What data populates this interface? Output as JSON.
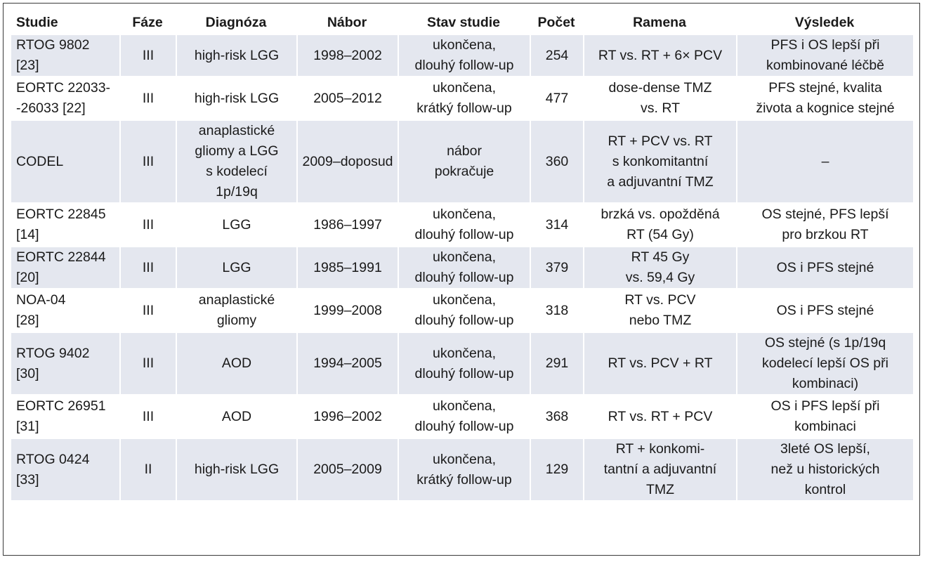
{
  "headers": [
    "Studie",
    "Fáze",
    "Diagnóza",
    "Nábor",
    "Stav studie",
    "Počet",
    "Ramena",
    "Výsledek"
  ],
  "rows": [
    {
      "studie": [
        "RTOG 9802",
        "[23]"
      ],
      "faze": "III",
      "diagnoza": [
        "high-risk LGG"
      ],
      "nabor": "1998–2002",
      "stav": [
        "ukončena,",
        "dlouhý follow-up"
      ],
      "pocet": "254",
      "ramena": [
        "RT vs. RT + 6× PCV"
      ],
      "vysledek": [
        "PFS i OS lepší při",
        "kombinované léčbě"
      ]
    },
    {
      "studie": [
        "EORTC 22033-",
        "-26033 [22]"
      ],
      "faze": "III",
      "diagnoza": [
        "high-risk LGG"
      ],
      "nabor": "2005–2012",
      "stav": [
        "ukončena,",
        "krátký follow-up"
      ],
      "pocet": "477",
      "ramena": [
        "dose-dense TMZ",
        "vs. RT"
      ],
      "vysledek": [
        "PFS stejné, kvalita",
        "života a kognice stejné"
      ]
    },
    {
      "studie": [
        "CODEL"
      ],
      "faze": "III",
      "diagnoza": [
        "anaplastické",
        "gliomy a LGG",
        "s kodelecí",
        "1p/19q"
      ],
      "nabor": "2009–doposud",
      "stav": [
        "nábor",
        "pokračuje"
      ],
      "pocet": "360",
      "ramena": [
        "RT + PCV vs. RT",
        "s konkomitantní",
        "a adjuvantní TMZ"
      ],
      "vysledek": [
        "–"
      ]
    },
    {
      "studie": [
        "EORTC 22845",
        "[14]"
      ],
      "faze": "III",
      "diagnoza": [
        "LGG"
      ],
      "nabor": "1986–1997",
      "stav": [
        "ukončena,",
        "dlouhý follow-up"
      ],
      "pocet": "314",
      "ramena": [
        "brzká vs. opožděná",
        "RT (54 Gy)"
      ],
      "vysledek": [
        "OS stejné, PFS lepší",
        "pro brzkou RT"
      ]
    },
    {
      "studie": [
        "EORTC 22844",
        "[20]"
      ],
      "faze": "III",
      "diagnoza": [
        "LGG"
      ],
      "nabor": "1985–1991",
      "stav": [
        "ukončena,",
        "dlouhý follow-up"
      ],
      "pocet": "379",
      "ramena": [
        "RT 45 Gy",
        "vs. 59,4 Gy"
      ],
      "vysledek": [
        "OS i PFS stejné"
      ]
    },
    {
      "studie": [
        "NOA-04",
        "[28]"
      ],
      "faze": "III",
      "diagnoza": [
        "anaplastické",
        "gliomy"
      ],
      "nabor": "1999–2008",
      "stav": [
        "ukončena,",
        "dlouhý follow-up"
      ],
      "pocet": "318",
      "ramena": [
        "RT vs. PCV",
        "nebo TMZ"
      ],
      "vysledek": [
        "OS i PFS stejné"
      ]
    },
    {
      "studie": [
        "RTOG 9402",
        "[30]"
      ],
      "faze": "III",
      "diagnoza": [
        "AOD"
      ],
      "nabor": "1994–2005",
      "stav": [
        "ukončena,",
        "dlouhý follow-up"
      ],
      "pocet": "291",
      "ramena": [
        "RT vs. PCV + RT"
      ],
      "vysledek": [
        "OS stejné (s 1p/19q",
        "kodelecí lepší OS při",
        "kombinaci)"
      ]
    },
    {
      "studie": [
        "EORTC 26951",
        "[31]"
      ],
      "faze": "III",
      "diagnoza": [
        "AOD"
      ],
      "nabor": "1996–2002",
      "stav": [
        "ukončena,",
        "dlouhý follow-up"
      ],
      "pocet": "368",
      "ramena": [
        "RT vs. RT + PCV"
      ],
      "vysledek": [
        "OS i PFS lepší při",
        "kombinaci"
      ]
    },
    {
      "studie": [
        "RTOG 0424",
        "[33]"
      ],
      "faze": "II",
      "diagnoza": [
        "high-risk LGG"
      ],
      "nabor": "2005–2009",
      "stav": [
        "ukončena,",
        "krátký follow-up"
      ],
      "pocet": "129",
      "ramena": [
        "RT + konkomi-",
        "tantní a adjuvantní",
        "TMZ"
      ],
      "vysledek": [
        "3leté OS lepší,",
        "než u historických",
        "kontrol"
      ]
    }
  ]
}
